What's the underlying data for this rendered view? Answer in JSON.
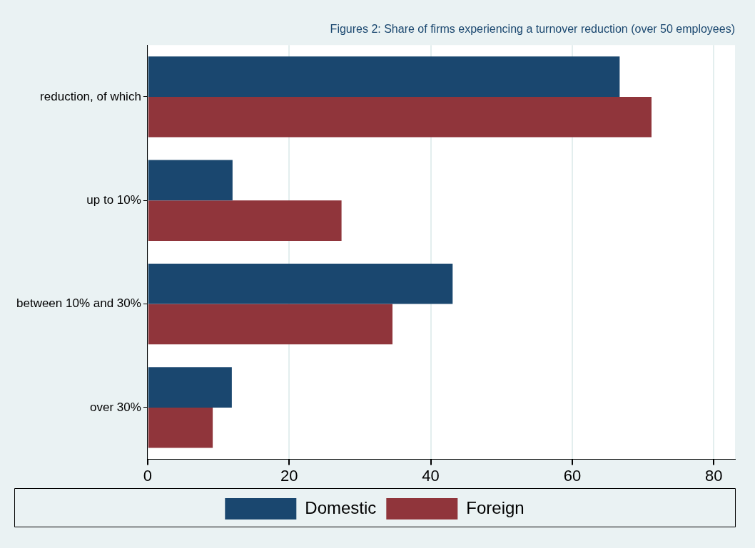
{
  "chart_data": {
    "type": "bar",
    "orientation": "horizontal",
    "title": "Figures 2: Share of firms experiencing a turnover reduction (over 50 employees)",
    "categories": [
      "reduction, of which",
      "up to 10%",
      "between 10% and 30%",
      "over 30%"
    ],
    "series": [
      {
        "name": "Domestic",
        "color": "#1a476f",
        "values": [
          66.7,
          12.0,
          43.1,
          11.9
        ]
      },
      {
        "name": "Foreign",
        "color": "#90353b",
        "values": [
          71.2,
          27.4,
          34.6,
          9.2
        ]
      }
    ],
    "xlim": [
      0,
      83
    ],
    "xticks": [
      0,
      20,
      40,
      60,
      80
    ],
    "grid": "x",
    "legend": "bottom"
  }
}
